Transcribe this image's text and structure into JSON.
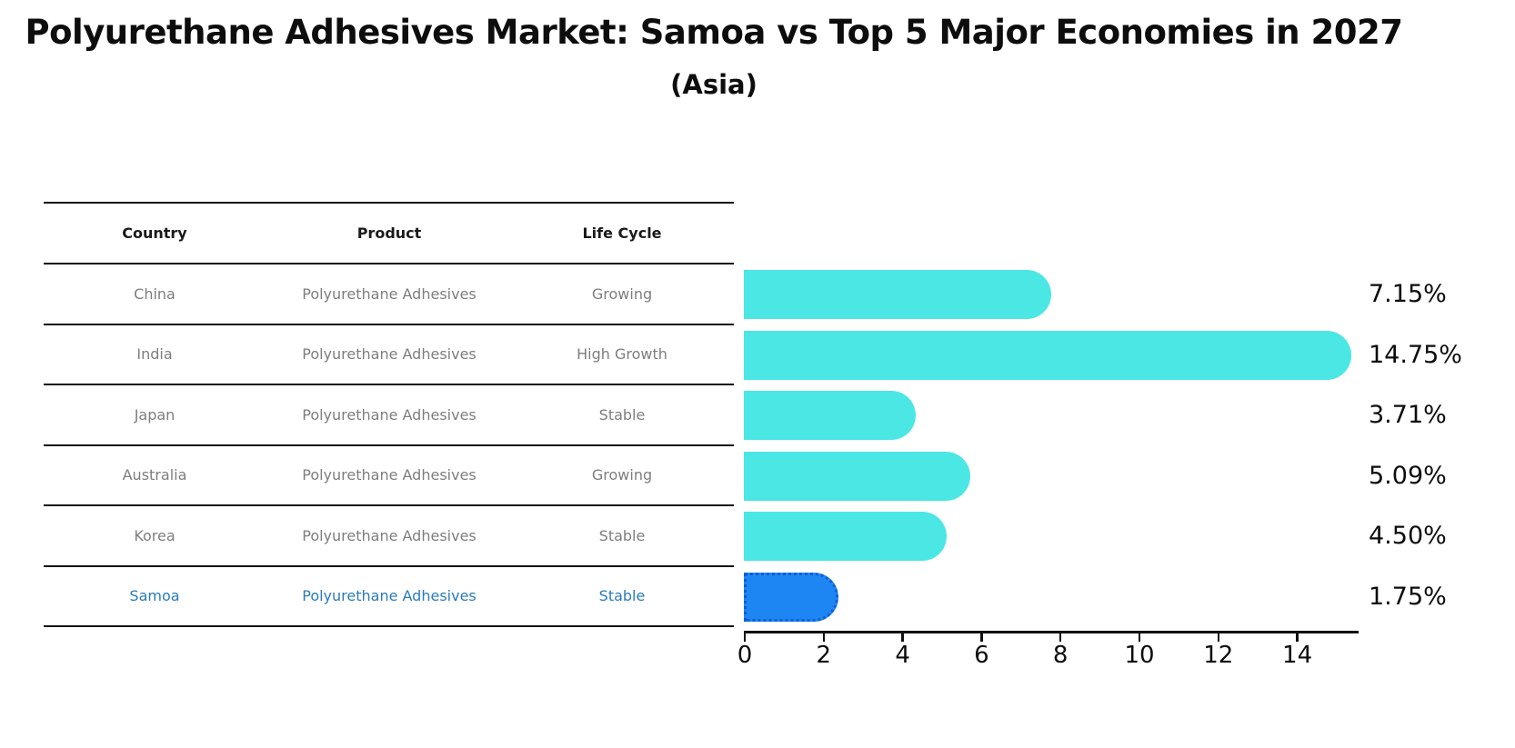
{
  "title": "Polyurethane Adhesives Market: Samoa vs Top 5 Major Economies in 2027",
  "subtitle": "(Asia)",
  "table": {
    "headers": [
      "Country",
      "Product",
      "Life Cycle"
    ],
    "rows": [
      {
        "country": "China",
        "product": "Polyurethane Adhesives",
        "life_cycle": "Growing",
        "highlight": false
      },
      {
        "country": "India",
        "product": "Polyurethane Adhesives",
        "life_cycle": "High Growth",
        "highlight": false
      },
      {
        "country": "Japan",
        "product": "Polyurethane Adhesives",
        "life_cycle": "Stable",
        "highlight": false
      },
      {
        "country": "Australia",
        "product": "Polyurethane Adhesives",
        "life_cycle": "Growing",
        "highlight": false
      },
      {
        "country": "Korea",
        "product": "Polyurethane Adhesives",
        "life_cycle": "Stable",
        "highlight": false
      },
      {
        "country": "Samoa",
        "product": "Polyurethane Adhesives",
        "life_cycle": "Stable",
        "highlight": true
      }
    ]
  },
  "chart_data": {
    "type": "bar",
    "orientation": "horizontal",
    "title": "Polyurethane Adhesives Market: Samoa vs Top 5 Major Economies in 2027",
    "subtitle": "(Asia)",
    "categories": [
      "China",
      "India",
      "Japan",
      "Australia",
      "Korea",
      "Samoa"
    ],
    "values": [
      7.15,
      14.75,
      3.71,
      5.09,
      4.5,
      1.75
    ],
    "value_labels": [
      "7.15%",
      "14.75%",
      "3.71%",
      "5.09%",
      "4.50%",
      "1.75%"
    ],
    "x_ticks": [
      0,
      2,
      4,
      6,
      8,
      10,
      12,
      14
    ],
    "x_tick_labels": [
      "0",
      "2",
      "4",
      "6",
      "8",
      "10",
      "12",
      "14"
    ],
    "xlim": [
      0,
      15.5
    ],
    "grid": false,
    "legend": "none",
    "bar_color": "#4ae7e4",
    "highlight_index": 5,
    "highlight_color": "#1e86f2",
    "highlight_edge_color": "#0d5fd8",
    "highlight_text_color": "#2b7bba"
  }
}
